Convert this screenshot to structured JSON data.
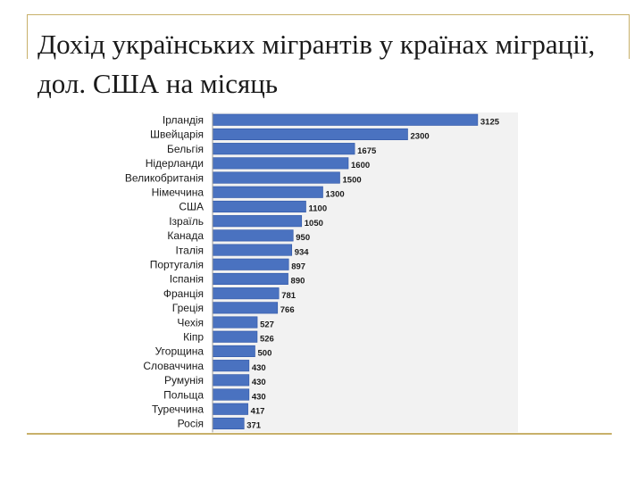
{
  "title": "Дохід українських мігрантів у країнах міграції, дол. США на місяць",
  "colors": {
    "bar": "#4a72c0",
    "bar_edge": "#2f56a6",
    "grid_bg": "#f2f2f2",
    "frame": "#c8b06a"
  },
  "chart_data": {
    "type": "bar",
    "orientation": "horizontal",
    "title": "",
    "xlabel": "",
    "ylabel": "",
    "categories": [
      "Ірландія",
      "Швейцарія",
      "Бельгія",
      "Нідерланди",
      "Великобританія",
      "Німеччина",
      "США",
      "Ізраїль",
      "Канада",
      "Італія",
      "Португалія",
      "Іспанія",
      "Франція",
      "Греція",
      "Чехія",
      "Кіпр",
      "Угорщина",
      "Словаччина",
      "Румунія",
      "Польща",
      "Туреччина",
      "Росія"
    ],
    "values": [
      3125,
      2300,
      1675,
      1600,
      1500,
      1300,
      1100,
      1050,
      950,
      934,
      897,
      890,
      781,
      766,
      527,
      526,
      500,
      430,
      430,
      430,
      417,
      371
    ],
    "xlim": [
      0,
      3600
    ],
    "grid": false,
    "legend": "none"
  }
}
